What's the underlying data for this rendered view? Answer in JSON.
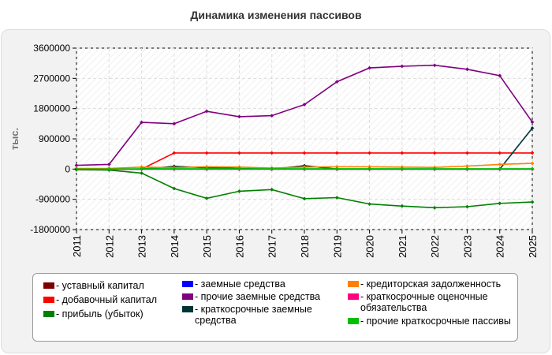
{
  "chart_data": {
    "type": "line",
    "title": "Динамика изменения пассивов",
    "ylabel": "тыс.",
    "xlabel": "",
    "ylim": [
      -1800000,
      3600000
    ],
    "yticks": [
      "3600000",
      "2700000",
      "1800000",
      "900000",
      "0",
      "-900000",
      "-1800000"
    ],
    "ytick_values": [
      3600000,
      2700000,
      1800000,
      900000,
      0,
      -900000,
      -1800000
    ],
    "x": [
      "2011",
      "2012",
      "2013",
      "2014",
      "2015",
      "2016",
      "2017",
      "2018",
      "2019",
      "2020",
      "2021",
      "2022",
      "2023",
      "2024",
      "2025"
    ],
    "grid": true,
    "legend_position": "bottom",
    "series": [
      {
        "name": "- уставный капитал",
        "color": "#7b0000",
        "values": [
          10,
          10,
          10,
          10,
          10,
          10,
          10,
          10,
          10,
          10,
          10,
          10,
          10,
          10,
          10
        ]
      },
      {
        "name": "- добавочный капитал",
        "color": "#ff0000",
        "values": [
          0,
          0,
          0,
          480000,
          480000,
          480000,
          480000,
          480000,
          480000,
          480000,
          480000,
          480000,
          480000,
          480000,
          480000
        ]
      },
      {
        "name": "- прибыль (убыток)",
        "color": "#008000",
        "values": [
          -20000,
          -30000,
          -120000,
          -580000,
          -870000,
          -660000,
          -610000,
          -880000,
          -850000,
          -1040000,
          -1100000,
          -1150000,
          -1120000,
          -1020000,
          -980000
        ]
      },
      {
        "name": "- заемные средства",
        "color": "#0000ff",
        "values": [
          0,
          0,
          0,
          0,
          0,
          0,
          0,
          0,
          0,
          0,
          0,
          0,
          0,
          0,
          0
        ]
      },
      {
        "name": "- прочие заемные средства",
        "color": "#800080",
        "values": [
          110000,
          140000,
          1390000,
          1350000,
          1720000,
          1560000,
          1590000,
          1920000,
          2600000,
          3010000,
          3060000,
          3090000,
          2970000,
          2780000,
          1400000
        ]
      },
      {
        "name": "- краткосрочные заемные средства",
        "color": "#003333",
        "values": [
          0,
          0,
          0,
          80000,
          40000,
          20000,
          0,
          100000,
          0,
          0,
          0,
          0,
          0,
          0,
          1220000
        ]
      },
      {
        "name": "- кредиторская задолженность",
        "color": "#ff8000",
        "values": [
          20000,
          20000,
          60000,
          40000,
          70000,
          60000,
          30000,
          60000,
          70000,
          70000,
          60000,
          50000,
          90000,
          140000,
          170000
        ]
      },
      {
        "name": "- краткосрочные оценочные обязательства",
        "color": "#ff0080",
        "values": [
          0,
          0,
          0,
          0,
          0,
          0,
          0,
          0,
          0,
          0,
          0,
          0,
          0,
          0,
          0
        ]
      },
      {
        "name": "- прочие краткосрочные пассивы",
        "color": "#00c000",
        "values": [
          0,
          0,
          10000,
          10000,
          10000,
          10000,
          10000,
          10000,
          10000,
          10000,
          10000,
          10000,
          10000,
          10000,
          10000
        ]
      }
    ]
  }
}
